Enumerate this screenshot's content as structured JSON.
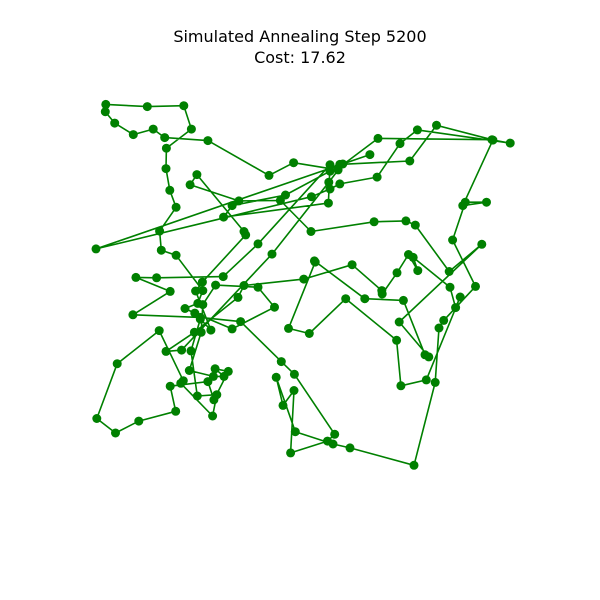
{
  "chart_data": {
    "type": "line",
    "title_line1": "Simulated Annealing Step 5200",
    "title_line2": "Cost: 17.62",
    "grid": false,
    "axes_visible": false,
    "colors": {
      "route": "#008000",
      "points": "#008000"
    },
    "xlim": [
      0,
      1
    ],
    "ylim": [
      0,
      1
    ],
    "closed": true,
    "route": [
      [
        0.207,
        0.963
      ],
      [
        0.121,
        0.961
      ],
      [
        0.023,
        0.966
      ],
      [
        0.022,
        0.949
      ],
      [
        0.044,
        0.922
      ],
      [
        0.088,
        0.895
      ],
      [
        0.135,
        0.908
      ],
      [
        0.162,
        0.888
      ],
      [
        0.264,
        0.881
      ],
      [
        0.408,
        0.799
      ],
      [
        0.466,
        0.829
      ],
      [
        0.571,
        0.812
      ],
      [
        0.575,
        0.825
      ],
      [
        0.74,
        0.833
      ],
      [
        0.803,
        0.917
      ],
      [
        0.934,
        0.883
      ],
      [
        0.665,
        0.886
      ],
      [
        0.57,
        0.815
      ],
      [
        0.552,
        0.809
      ],
      [
        0.447,
        0.753
      ],
      [
        0.321,
        0.728
      ],
      [
        0.301,
        0.701
      ],
      [
        0.548,
        0.734
      ],
      [
        0.552,
        0.824
      ],
      [
        0.382,
        0.638
      ],
      [
        0.3,
        0.561
      ],
      [
        0.143,
        0.558
      ],
      [
        0.094,
        0.559
      ],
      [
        0.175,
        0.526
      ],
      [
        0.087,
        0.471
      ],
      [
        0.246,
        0.465
      ],
      [
        0.341,
        0.455
      ],
      [
        0.437,
        0.361
      ],
      [
        0.468,
        0.331
      ],
      [
        0.563,
        0.19
      ],
      [
        0.546,
        0.174
      ],
      [
        0.459,
        0.146
      ],
      [
        0.467,
        0.293
      ],
      [
        0.441,
        0.258
      ],
      [
        0.425,
        0.324
      ],
      [
        0.47,
        0.196
      ],
      [
        0.559,
        0.167
      ],
      [
        0.599,
        0.158
      ],
      [
        0.75,
        0.117
      ],
      [
        0.8,
        0.312
      ],
      [
        0.809,
        0.44
      ],
      [
        0.82,
        0.458
      ],
      [
        0.895,
        0.538
      ],
      [
        0.841,
        0.647
      ],
      [
        0.871,
        0.736
      ],
      [
        0.921,
        0.736
      ],
      [
        0.865,
        0.728
      ],
      [
        0.936,
        0.882
      ],
      [
        0.977,
        0.875
      ],
      [
        0.758,
        0.906
      ],
      [
        0.717,
        0.874
      ],
      [
        0.663,
        0.795
      ],
      [
        0.575,
        0.779
      ],
      [
        0.552,
        0.767
      ],
      [
        0.508,
        0.749
      ],
      [
        0.0,
        0.626
      ],
      [
        0.646,
        0.848
      ],
      [
        0.582,
        0.826
      ],
      [
        0.549,
        0.783
      ],
      [
        0.415,
        0.614
      ],
      [
        0.202,
        0.388
      ],
      [
        0.165,
        0.385
      ],
      [
        0.232,
        0.43
      ],
      [
        0.335,
        0.512
      ],
      [
        0.349,
        0.54
      ],
      [
        0.49,
        0.555
      ],
      [
        0.604,
        0.589
      ],
      [
        0.674,
        0.528
      ],
      [
        0.675,
        0.52
      ],
      [
        0.71,
        0.57
      ],
      [
        0.737,
        0.613
      ],
      [
        0.759,
        0.575
      ],
      [
        0.748,
        0.606
      ],
      [
        0.835,
        0.536
      ],
      [
        0.848,
        0.488
      ],
      [
        0.859,
        0.513
      ],
      [
        0.779,
        0.318
      ],
      [
        0.719,
        0.304
      ],
      [
        0.709,
        0.411
      ],
      [
        0.589,
        0.509
      ],
      [
        0.503,
        0.427
      ],
      [
        0.454,
        0.439
      ],
      [
        0.517,
        0.595
      ],
      [
        0.515,
        0.598
      ],
      [
        0.634,
        0.509
      ],
      [
        0.725,
        0.505
      ],
      [
        0.776,
        0.377
      ],
      [
        0.785,
        0.372
      ],
      [
        0.715,
        0.454
      ],
      [
        0.91,
        0.637
      ],
      [
        0.833,
        0.573
      ],
      [
        0.753,
        0.682
      ],
      [
        0.731,
        0.692
      ],
      [
        0.656,
        0.69
      ],
      [
        0.507,
        0.667
      ],
      [
        0.435,
        0.74
      ],
      [
        0.337,
        0.739
      ],
      [
        0.222,
        0.777
      ],
      [
        0.238,
        0.801
      ],
      [
        0.349,
        0.667
      ],
      [
        0.353,
        0.659
      ],
      [
        0.251,
        0.548
      ],
      [
        0.235,
        0.527
      ],
      [
        0.271,
        0.435
      ],
      [
        0.246,
        0.461
      ],
      [
        0.224,
        0.386
      ],
      [
        0.239,
        0.28
      ],
      [
        0.285,
        0.283
      ],
      [
        0.275,
        0.233
      ],
      [
        0.2,
        0.31
      ],
      [
        0.206,
        0.316
      ],
      [
        0.149,
        0.434
      ],
      [
        0.05,
        0.356
      ],
      [
        0.002,
        0.227
      ],
      [
        0.046,
        0.193
      ],
      [
        0.101,
        0.221
      ],
      [
        0.188,
        0.244
      ],
      [
        0.175,
        0.303
      ],
      [
        0.264,
        0.314
      ],
      [
        0.278,
        0.271
      ],
      [
        0.312,
        0.338
      ],
      [
        0.281,
        0.344
      ],
      [
        0.302,
        0.326
      ],
      [
        0.277,
        0.326
      ],
      [
        0.22,
        0.34
      ],
      [
        0.248,
        0.43
      ],
      [
        0.252,
        0.495
      ],
      [
        0.282,
        0.541
      ],
      [
        0.382,
        0.536
      ],
      [
        0.421,
        0.489
      ],
      [
        0.321,
        0.438
      ],
      [
        0.233,
        0.475
      ],
      [
        0.21,
        0.486
      ],
      [
        0.24,
        0.498
      ],
      [
        0.252,
        0.528
      ],
      [
        0.189,
        0.611
      ],
      [
        0.154,
        0.623
      ],
      [
        0.15,
        0.668
      ],
      [
        0.189,
        0.724
      ],
      [
        0.174,
        0.764
      ],
      [
        0.165,
        0.815
      ],
      [
        0.166,
        0.863
      ],
      [
        0.225,
        0.908
      ],
      [
        0.207,
        0.963
      ]
    ]
  }
}
